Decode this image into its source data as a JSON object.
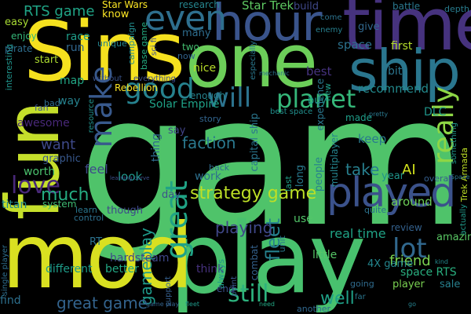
{
  "words": [
    {
      "text": "game",
      "color": "#4fc36a"
    },
    {
      "text": "Sins",
      "color": "#f5e11f"
    },
    {
      "text": "one",
      "color": "#6cce59"
    },
    {
      "text": "play",
      "color": "#48c16e"
    },
    {
      "text": "time",
      "color": "#46327e"
    },
    {
      "text": "mod",
      "color": "#d9e021"
    },
    {
      "text": "fun",
      "color": "#c5df2b"
    },
    {
      "text": "hour",
      "color": "#3a548c"
    },
    {
      "text": "ship",
      "color": "#2a768e"
    },
    {
      "text": "played",
      "color": "#3b528b"
    },
    {
      "text": "even",
      "color": "#2e6f8e"
    },
    {
      "text": "good",
      "color": "#26828e"
    },
    {
      "text": "make",
      "color": "#38598c"
    },
    {
      "text": "great",
      "color": "#20a386"
    },
    {
      "text": "planet",
      "color": "#35b779"
    },
    {
      "text": "really",
      "color": "#8ed645"
    },
    {
      "text": "love",
      "color": "#482878"
    },
    {
      "text": "lot",
      "color": "#31688e"
    },
    {
      "text": "still",
      "color": "#2db27d"
    },
    {
      "text": "will",
      "color": "#2c738e"
    },
    {
      "text": "fleet",
      "color": "#26818e"
    },
    {
      "text": "strategy game",
      "color": "#bddf26"
    },
    {
      "text": "RTS game",
      "color": "#20a486"
    },
    {
      "text": "Star Trek",
      "color": "#5ec962"
    },
    {
      "text": "Star Wars",
      "color": "#fde725"
    },
    {
      "text": "research",
      "color": "#25858e"
    },
    {
      "text": "want",
      "color": "#3e4989"
    },
    {
      "text": "much",
      "color": "#25ac82"
    },
    {
      "text": "faction",
      "color": "#2a788e"
    },
    {
      "text": "AI",
      "color": "#d2e21b"
    },
    {
      "text": "take",
      "color": "#277f8e"
    },
    {
      "text": "playing",
      "color": "#3f4788"
    },
    {
      "text": "gameplay",
      "color": "#1f9a8a"
    },
    {
      "text": "great game",
      "color": "#33638d"
    },
    {
      "text": "well",
      "color": "#1fa188"
    },
    {
      "text": "friend",
      "color": "#7ad151"
    },
    {
      "text": "build",
      "color": "#3f4889"
    },
    {
      "text": "battle",
      "color": "#2a788e"
    },
    {
      "text": "space",
      "color": "#2c728e"
    },
    {
      "text": "give",
      "color": "#31688e"
    },
    {
      "text": "first",
      "color": "#b5de2b"
    },
    {
      "text": "know",
      "color": "#fde725"
    },
    {
      "text": "race",
      "color": "#1f9e89"
    },
    {
      "text": "easy",
      "color": "#a8db34"
    },
    {
      "text": "enjoy",
      "color": "#35b779"
    },
    {
      "text": "map",
      "color": "#22a785"
    },
    {
      "text": "nice",
      "color": "#b8de29"
    },
    {
      "text": "best",
      "color": "#46337f"
    },
    {
      "text": "Solar Empire",
      "color": "#1fa287"
    },
    {
      "text": "Rebellion",
      "color": "#fde725"
    },
    {
      "text": "way",
      "color": "#26828e"
    },
    {
      "text": "start",
      "color": "#addc30"
    },
    {
      "text": "awesome",
      "color": "#482878"
    },
    {
      "text": "recommend",
      "color": "#238a8d"
    },
    {
      "text": "DLC",
      "color": "#1f968b"
    },
    {
      "text": "buy",
      "color": "#1f9a8a"
    },
    {
      "text": "keep",
      "color": "#297b8e"
    },
    {
      "text": "capital ship",
      "color": "#2a768e"
    },
    {
      "text": "worth",
      "color": "#4ac16d"
    },
    {
      "text": "feel",
      "color": "#3e4a89"
    },
    {
      "text": "graphic",
      "color": "#38588c"
    },
    {
      "text": "look",
      "color": "#1f988b"
    },
    {
      "text": "system",
      "color": "#3fbc73"
    },
    {
      "text": "hardsteam",
      "color": "#3f4889"
    },
    {
      "text": "different",
      "color": "#1e9c89"
    },
    {
      "text": "better",
      "color": "#22a884"
    },
    {
      "text": "find",
      "color": "#2d708e"
    },
    {
      "text": "work",
      "color": "#2d708e"
    },
    {
      "text": "year",
      "color": "#1f958b"
    },
    {
      "text": "around",
      "color": "#6ece58"
    },
    {
      "text": "real time",
      "color": "#20a386"
    },
    {
      "text": "little",
      "color": "#56c667"
    },
    {
      "text": "space RTS",
      "color": "#29af7f"
    },
    {
      "text": "4X game",
      "color": "#24868e"
    },
    {
      "text": "sale",
      "color": "#27808e"
    },
    {
      "text": "player",
      "color": "#7ad151"
    },
    {
      "text": "amazing",
      "color": "#5ac864"
    },
    {
      "text": "review",
      "color": "#34618d"
    },
    {
      "text": "go",
      "color": "#26828e"
    },
    {
      "text": "say",
      "color": "#414487"
    },
    {
      "text": "thing",
      "color": "#2f6b8e"
    },
    {
      "text": "day",
      "color": "#3b528b"
    },
    {
      "text": "though",
      "color": "#3e4989"
    },
    {
      "text": "RT",
      "color": "#2c728e"
    },
    {
      "text": "titan",
      "color": "#238a8d"
    },
    {
      "text": "interesting",
      "color": "#1f948c"
    },
    {
      "text": "pirate",
      "color": "#2e6e8e"
    },
    {
      "text": "need",
      "color": "#22a884"
    },
    {
      "text": "run",
      "color": "#31678e"
    },
    {
      "text": "bit",
      "color": "#2b758e"
    },
    {
      "text": "many",
      "color": "#2e6d8e"
    },
    {
      "text": "two",
      "color": "#44bf70"
    },
    {
      "text": "now",
      "color": "#33638d"
    },
    {
      "text": "enough",
      "color": "#25838e"
    },
    {
      "text": "people",
      "color": "#26818e"
    },
    {
      "text": "last",
      "color": "#1f9e89"
    },
    {
      "text": "long",
      "color": "#29798e"
    },
    {
      "text": "use",
      "color": "#52c569"
    },
    {
      "text": "think",
      "color": "#46317e"
    },
    {
      "text": "end",
      "color": "#3b518b"
    },
    {
      "text": "another",
      "color": "#31688e"
    },
    {
      "text": "single player",
      "color": "#2e6e8e"
    },
    {
      "text": "Trek Armada",
      "color": "#bddf26"
    },
    {
      "text": "multiplayer",
      "color": "#25848e"
    },
    {
      "text": "experience",
      "color": "#2a778e"
    },
    {
      "text": "made",
      "color": "#1f9e89"
    },
    {
      "text": "quite",
      "color": "#2c728e"
    },
    {
      "text": "everything",
      "color": "#3d4e8a"
    },
    {
      "text": "without",
      "color": "#3a538b"
    },
    {
      "text": "campaign",
      "color": "#228c8d"
    },
    {
      "text": "base game",
      "color": "#25ac82"
    },
    {
      "text": "unique",
      "color": "#25848e"
    },
    {
      "text": "new",
      "color": "#1f9e89"
    },
    {
      "text": "especially",
      "color": "#2a788e"
    },
    {
      "text": "enemy",
      "color": "#277f8e"
    },
    {
      "text": "control",
      "color": "#2d708e"
    },
    {
      "text": "combat",
      "color": "#34618d"
    },
    {
      "text": "unit",
      "color": "#2a788e"
    },
    {
      "text": "story",
      "color": "#32658e"
    },
    {
      "text": "learn",
      "color": "#2a768e"
    },
    {
      "text": "sci fi",
      "color": "#3e4c8a"
    },
    {
      "text": "bad",
      "color": "#2e6f8e"
    },
    {
      "text": "fan",
      "color": "#3a538b"
    },
    {
      "text": "resource",
      "color": "#20928c"
    },
    {
      "text": "overall",
      "color": "#355e8d"
    },
    {
      "text": "always",
      "color": "#1f998a"
    },
    {
      "text": "support",
      "color": "#355f8d"
    },
    {
      "text": "going",
      "color": "#2f6b8e"
    },
    {
      "text": "far",
      "color": "#2a768e"
    },
    {
      "text": "actually",
      "color": "#1f9a8a"
    },
    {
      "text": "something",
      "color": "#1f968b"
    },
    {
      "text": "best space",
      "color": "#218f8d"
    },
    {
      "text": "point",
      "color": "#39568c"
    },
    {
      "text": "back",
      "color": "#2f6c8e"
    },
    {
      "text": "come",
      "color": "#2c738e"
    },
    {
      "text": "depth",
      "color": "#287c8e"
    },
    {
      "text": "mechanic",
      "color": "#2c728e"
    },
    {
      "text": "fleet",
      "color": "#1f998a"
    },
    {
      "text": "learning curve",
      "color": "#3c4f8a"
    },
    {
      "text": "game play",
      "color": "#33638d"
    },
    {
      "text": "Space",
      "color": "#2b758e"
    },
    {
      "text": "kind",
      "color": "#23898e"
    },
    {
      "text": "pretty",
      "color": "#2a788e"
    }
  ]
}
